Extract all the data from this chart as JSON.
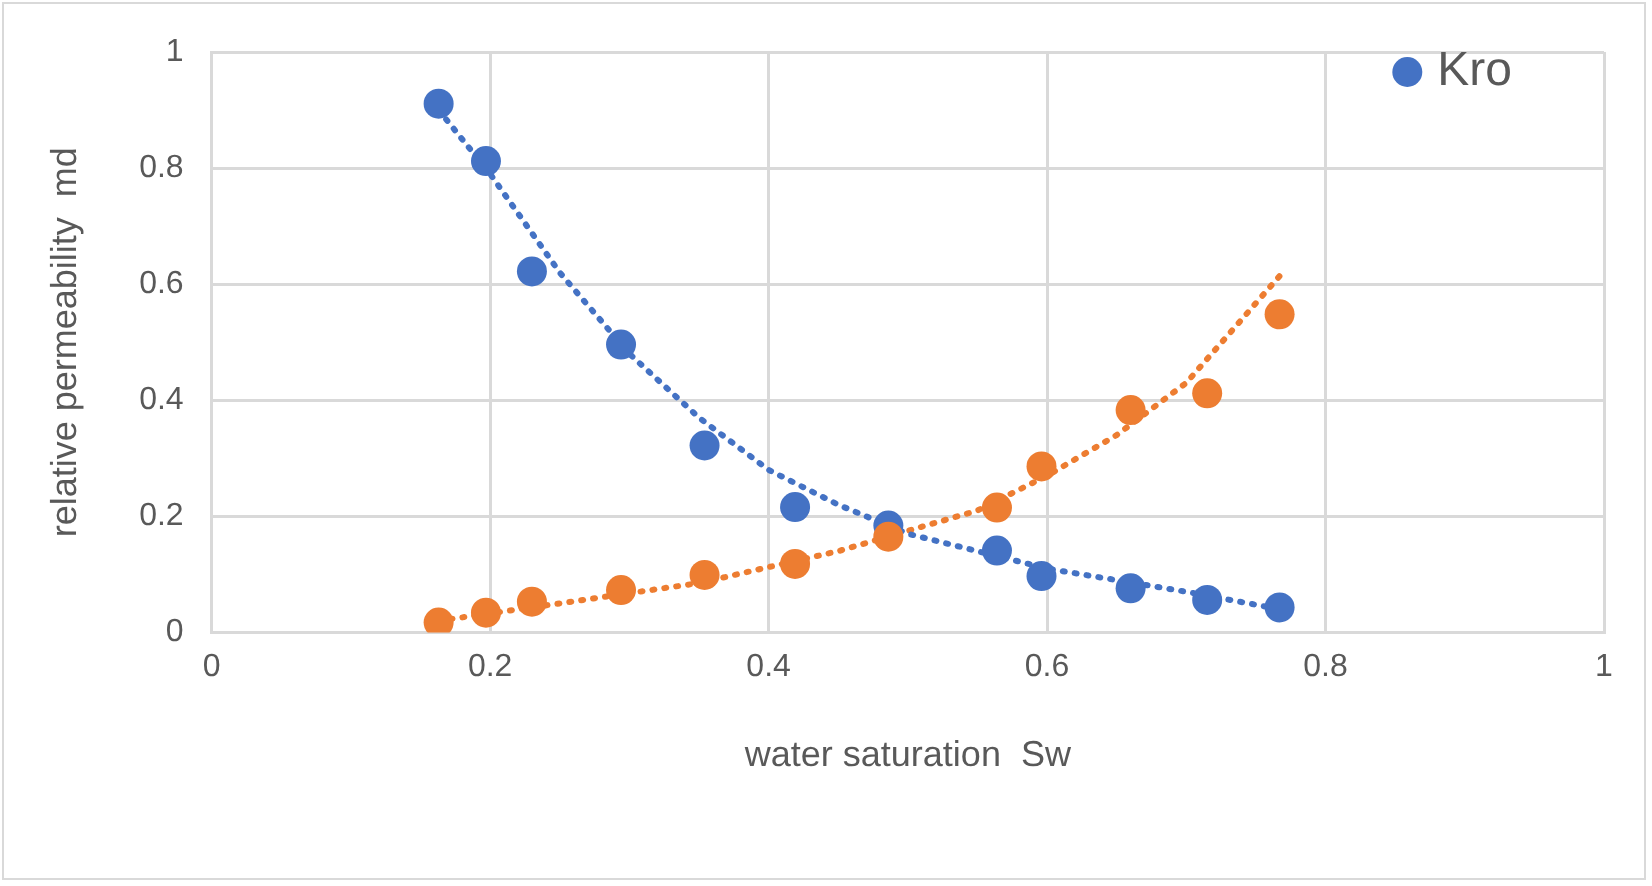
{
  "chart_data": {
    "type": "scatter",
    "xlabel": "water saturation  Sw",
    "ylabel": "relative permeability  md",
    "x": [
      0.163,
      0.197,
      0.23,
      0.294,
      0.354,
      0.419,
      0.486,
      0.564,
      0.596,
      0.66,
      0.715,
      0.767
    ],
    "series": [
      {
        "name": "Kro",
        "color": "#4472c4",
        "marker": "circle",
        "values": [
          0.911,
          0.812,
          0.622,
          0.496,
          0.322,
          0.216,
          0.184,
          0.141,
          0.097,
          0.076,
          0.056,
          0.043
        ]
      },
      {
        "color": "#ed7d31",
        "marker": "circle",
        "values": [
          0.017,
          0.034,
          0.053,
          0.073,
          0.099,
          0.118,
          0.165,
          0.215,
          0.286,
          0.383,
          0.412,
          0.548
        ]
      },
      {
        "type": "line",
        "color": "#4472c4",
        "line_style": "dotted",
        "x": [
          0.163,
          0.2,
          0.25,
          0.3,
          0.35,
          0.4,
          0.45,
          0.5,
          0.6,
          0.7,
          0.767
        ],
        "values": [
          0.9,
          0.79,
          0.62,
          0.48,
          0.37,
          0.28,
          0.22,
          0.17,
          0.11,
          0.07,
          0.04
        ]
      },
      {
        "type": "line",
        "color": "#ed7d31",
        "line_style": "dotted",
        "x": [
          0.163,
          0.25,
          0.35,
          0.45,
          0.5,
          0.55,
          0.6,
          0.65,
          0.7,
          0.767
        ],
        "values": [
          0.02,
          0.05,
          0.085,
          0.14,
          0.175,
          0.21,
          0.27,
          0.34,
          0.43,
          0.614
        ]
      }
    ],
    "xlim": [
      0,
      1
    ],
    "xticks": [
      0,
      0.2,
      0.4,
      0.6,
      0.8,
      1
    ],
    "ylim": [
      0,
      1
    ],
    "yticks": [
      0,
      0.2,
      0.4,
      0.6,
      0.8,
      1
    ],
    "grid": true,
    "legend": "top right"
  }
}
